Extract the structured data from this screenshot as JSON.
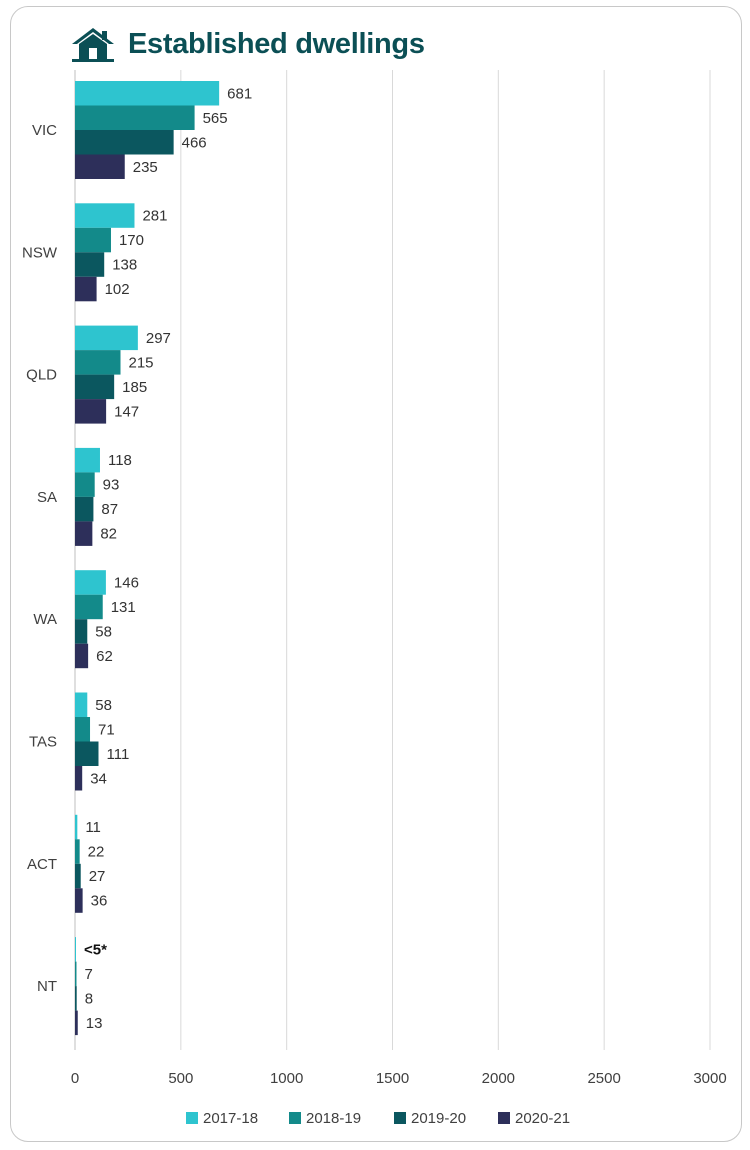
{
  "chart_data": {
    "type": "bar",
    "orientation": "horizontal",
    "title": "Established dwellings",
    "icon": "house-icon",
    "categories": [
      "VIC",
      "NSW",
      "QLD",
      "SA",
      "WA",
      "TAS",
      "ACT",
      "NT"
    ],
    "series": [
      {
        "name": "2017-18",
        "color": "#2ec4cf",
        "values": [
          681,
          281,
          297,
          118,
          146,
          58,
          11,
          2
        ],
        "labels": [
          "681",
          "281",
          "297",
          "118",
          "146",
          "58",
          "11",
          "<5*"
        ]
      },
      {
        "name": "2018-19",
        "color": "#138a8a",
        "values": [
          565,
          170,
          215,
          93,
          131,
          71,
          22,
          7
        ],
        "labels": [
          "565",
          "170",
          "215",
          "93",
          "131",
          "71",
          "22",
          "7"
        ]
      },
      {
        "name": "2019-20",
        "color": "#0b575f",
        "values": [
          466,
          138,
          185,
          87,
          58,
          111,
          27,
          8
        ],
        "labels": [
          "466",
          "138",
          "185",
          "87",
          "58",
          "111",
          "27",
          "8"
        ]
      },
      {
        "name": "2020-21",
        "color": "#2d2f5a",
        "values": [
          235,
          102,
          147,
          82,
          62,
          34,
          36,
          13
        ],
        "labels": [
          "235",
          "102",
          "147",
          "82",
          "62",
          "34",
          "36",
          "13"
        ]
      }
    ],
    "xlim": [
      0,
      3000
    ],
    "xticks": [
      "0",
      "500",
      "1000",
      "1500",
      "2000",
      "2500",
      "3000"
    ],
    "grid": true,
    "legend": "bottom"
  }
}
